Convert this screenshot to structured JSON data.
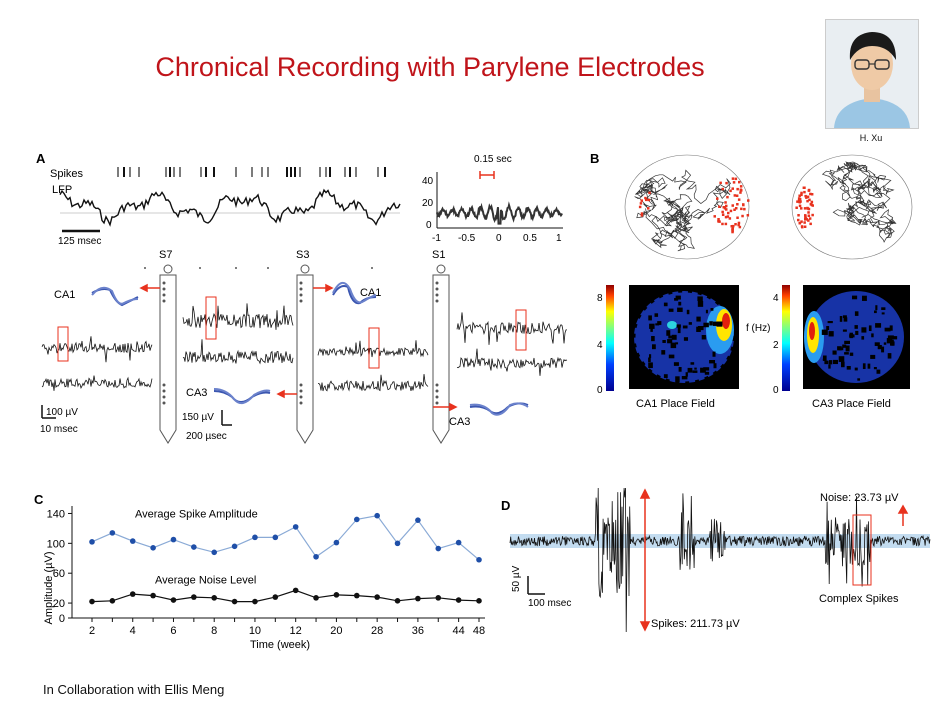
{
  "title": "Chronical Recording with Parylene Electrodes",
  "portrait": {
    "name": "H. Xu"
  },
  "footer": "In Collaboration with Ellis Meng",
  "panel_a": {
    "label": "A",
    "spikes_label": "Spikes",
    "lfp_label": "LFP",
    "lfp_scale": "125 msec",
    "autocorr_annotation": "0.15 sec",
    "autocorr_yticks": [
      "40",
      "20",
      "0"
    ],
    "autocorr_xticks": [
      "-1",
      "-0.5",
      "0",
      "0.5",
      "1"
    ],
    "shanks": [
      "S7",
      "S3",
      "S1"
    ],
    "regions": [
      "CA1",
      "CA3",
      "CA1",
      "CA3"
    ],
    "scale_left": [
      "100 µV",
      "10 msec"
    ],
    "scale_mid": [
      "150 µV",
      "200 µsec"
    ]
  },
  "panel_b": {
    "label": "B",
    "heatmap1": {
      "caption": "CA1 Place Field",
      "ticks": [
        "8",
        "4",
        "0"
      ]
    },
    "heatmap2": {
      "caption": "CA3 Place Field",
      "ticks": [
        "4",
        "2",
        "0"
      ],
      "unit": "f (Hz)"
    },
    "colors": {
      "spike": "#e8321e",
      "path": "#222222"
    }
  },
  "panel_d": {
    "label": "D",
    "noise": "Noise: 23.73 µV",
    "spikes": "Spikes: 211.73 µV",
    "complex": "Complex Spikes",
    "scale": [
      "50 µV",
      "100 msec"
    ]
  },
  "chart_data": {
    "type": "line",
    "label": "C",
    "xlabel": "Time (week)",
    "ylabel": "Amplitude (µV)",
    "categories": [
      "2",
      "3",
      "4",
      "5",
      "6",
      "7",
      "8",
      "9",
      "10",
      "11",
      "12",
      "16",
      "20",
      "24",
      "28",
      "32",
      "36",
      "40",
      "44",
      "48"
    ],
    "xtick_labels": [
      "2",
      "4",
      "6",
      "8",
      "10",
      "12",
      "20",
      "28",
      "36",
      "44",
      "48"
    ],
    "yticks": [
      0,
      20,
      60,
      100,
      140
    ],
    "ylim": [
      0,
      150
    ],
    "series": [
      {
        "name": "Average Spike Amplitude",
        "color": "#1f4fa8",
        "values": [
          102,
          114,
          103,
          94,
          105,
          95,
          88,
          96,
          108,
          108,
          122,
          82,
          101,
          132,
          137,
          100,
          131,
          93,
          101,
          78
        ]
      },
      {
        "name": "Average Noise Level",
        "color": "#111111",
        "values": [
          22,
          23,
          32,
          30,
          24,
          28,
          27,
          22,
          22,
          28,
          37,
          27,
          31,
          30,
          28,
          23,
          26,
          27,
          24,
          23
        ]
      }
    ]
  }
}
